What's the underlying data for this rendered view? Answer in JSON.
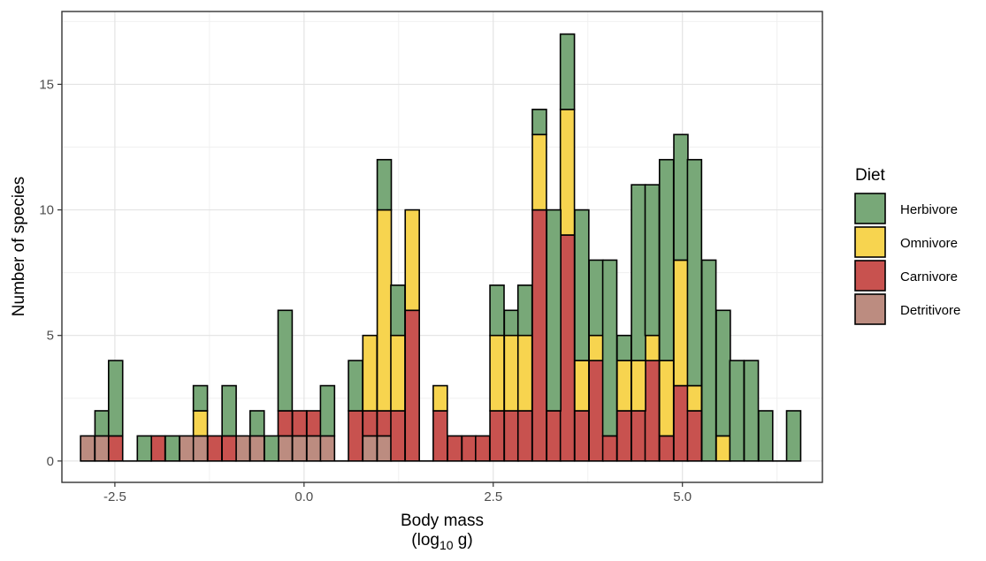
{
  "chart_data": {
    "type": "bar",
    "stacked": true,
    "xlabel": "Body mass",
    "xlabel_unit_pre": "(log",
    "xlabel_unit_sub": "10",
    "xlabel_unit_post": " g)",
    "ylabel": "Number of species",
    "xlim": [
      -3.2,
      6.85
    ],
    "ylim": [
      -0.85,
      17.9
    ],
    "x_ticks": [
      -2.5,
      0.0,
      2.5,
      5.0
    ],
    "x_tick_labels": [
      "-2.5",
      "0.0",
      "2.5",
      "5.0"
    ],
    "y_ticks": [
      0,
      5,
      10,
      15
    ],
    "y_tick_labels": [
      "0",
      "5",
      "10",
      "15"
    ],
    "grid": true,
    "legend_title": "Diet",
    "legend_position": "right",
    "bin_width": 0.1862,
    "x": [
      -2.86,
      -2.67,
      -2.49,
      -2.3,
      -2.11,
      -1.93,
      -1.74,
      -1.55,
      -1.37,
      -1.18,
      -0.99,
      -0.81,
      -0.62,
      -0.43,
      -0.25,
      -0.06,
      0.13,
      0.31,
      0.5,
      0.68,
      0.87,
      1.06,
      1.24,
      1.43,
      1.62,
      1.8,
      1.99,
      2.18,
      2.36,
      2.55,
      2.74,
      2.92,
      3.11,
      3.3,
      3.48,
      3.67,
      3.86,
      4.04,
      4.23,
      4.42,
      4.6,
      4.79,
      4.98,
      5.16,
      5.35,
      5.54,
      5.72,
      5.91,
      6.1,
      6.28,
      6.47
    ],
    "series": [
      {
        "name": "Detritivore",
        "color": "#BC8C80",
        "values": [
          1,
          1,
          0,
          0,
          0,
          0,
          0,
          1,
          1,
          0,
          0,
          1,
          1,
          0,
          1,
          1,
          1,
          1,
          0,
          0,
          1,
          1,
          0,
          0,
          0,
          0,
          0,
          0,
          0,
          0,
          0,
          0,
          0,
          0,
          0,
          0,
          0,
          0,
          0,
          0,
          0,
          0,
          0,
          0,
          0,
          0,
          0,
          0,
          0,
          0,
          0
        ]
      },
      {
        "name": "Carnivore",
        "color": "#C8524F",
        "values": [
          0,
          0,
          1,
          0,
          0,
          1,
          0,
          0,
          0,
          1,
          1,
          0,
          0,
          0,
          1,
          1,
          1,
          0,
          0,
          2,
          1,
          1,
          2,
          6,
          0,
          2,
          1,
          1,
          1,
          2,
          2,
          2,
          10,
          2,
          9,
          2,
          4,
          1,
          2,
          2,
          4,
          1,
          3,
          2,
          0,
          0,
          0,
          0,
          0,
          0,
          0
        ]
      },
      {
        "name": "Omnivore",
        "color": "#F7D44F",
        "values": [
          0,
          0,
          0,
          0,
          0,
          0,
          0,
          0,
          1,
          0,
          0,
          0,
          0,
          0,
          0,
          0,
          0,
          0,
          0,
          0,
          3,
          8,
          3,
          4,
          0,
          1,
          0,
          0,
          0,
          3,
          3,
          3,
          3,
          0,
          5,
          2,
          1,
          0,
          2,
          2,
          1,
          3,
          5,
          1,
          0,
          1,
          0,
          0,
          0,
          0,
          0
        ]
      },
      {
        "name": "Herbivore",
        "color": "#78A878",
        "values": [
          0,
          1,
          3,
          0,
          1,
          0,
          1,
          0,
          1,
          0,
          2,
          0,
          1,
          1,
          4,
          0,
          0,
          2,
          0,
          2,
          0,
          2,
          2,
          0,
          0,
          0,
          0,
          0,
          0,
          2,
          1,
          2,
          1,
          8,
          3,
          6,
          3,
          7,
          1,
          7,
          6,
          8,
          5,
          9,
          8,
          5,
          4,
          4,
          2,
          0,
          2
        ]
      }
    ],
    "legend_order": [
      "Herbivore",
      "Omnivore",
      "Carnivore",
      "Detritivore"
    ]
  }
}
